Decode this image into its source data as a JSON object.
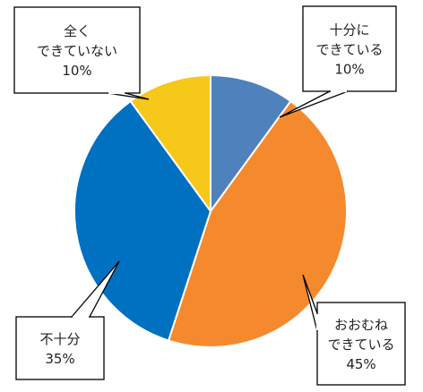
{
  "chart_data": {
    "type": "pie",
    "start": "top",
    "direction": "clockwise",
    "slices": [
      {
        "label": "十分に\nできている",
        "value": 10,
        "value_label": "10%",
        "color": "#4f81bd"
      },
      {
        "label": "おおむね\nできている",
        "value": 45,
        "value_label": "45%",
        "color": "#f5892d"
      },
      {
        "label": "不十分",
        "value": 35,
        "value_label": "35%",
        "color": "#0070c0"
      },
      {
        "label": "全く\nできていない",
        "value": 10,
        "value_label": "10%",
        "color": "#f5c81a"
      }
    ]
  }
}
